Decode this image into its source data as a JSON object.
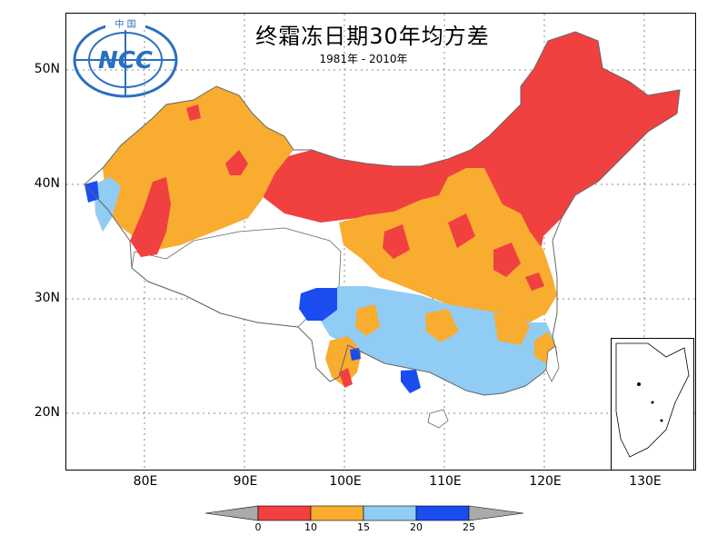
{
  "title": "终霜冻日期30年均方差",
  "subtitle": "1981年 - 2010年",
  "logo": {
    "text": "NCC",
    "top_text": "中 国"
  },
  "axes": {
    "y_ticks": [
      "50N",
      "40N",
      "30N",
      "20N"
    ],
    "x_ticks": [
      "80E",
      "90E",
      "100E",
      "110E",
      "120E",
      "130E"
    ]
  },
  "legend": {
    "bins": [
      {
        "label": "0",
        "color": "#f04040"
      },
      {
        "label": "10",
        "color": "#f8ac30"
      },
      {
        "label": "15",
        "color": "#90ccf4"
      },
      {
        "label": "20",
        "color": "#1a4cf0"
      },
      {
        "label": "25",
        "color": ""
      }
    ],
    "under_color": "#aaaaaa",
    "over_color": "#aaaaaa"
  },
  "colors": {
    "red": "#f04040",
    "orange": "#f8ac30",
    "lightblue": "#90ccf4",
    "blue": "#1a4cf0",
    "grid": "#888888",
    "border": "#666666"
  }
}
